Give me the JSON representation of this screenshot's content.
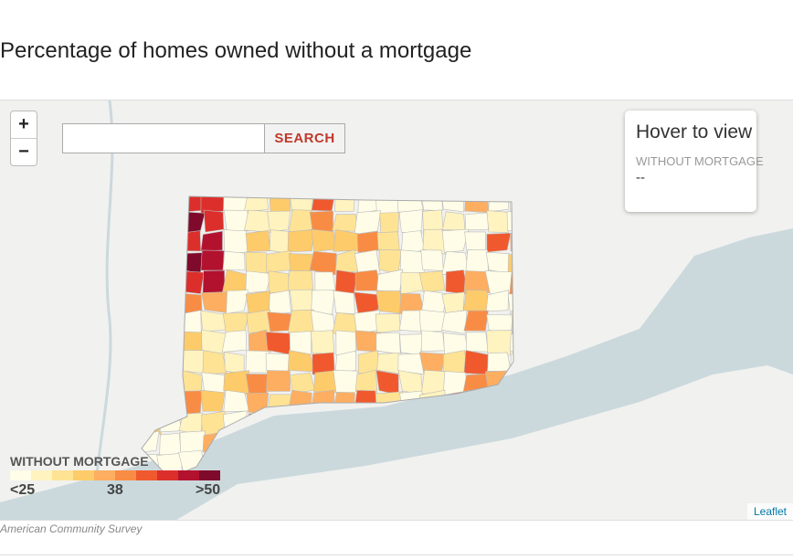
{
  "header": {
    "title": "Percentage of homes owned without a mortgage"
  },
  "controls": {
    "zoom_in": "+",
    "zoom_out": "−",
    "search_button": "SEARCH"
  },
  "info_box": {
    "title": "Hover to view",
    "label": "WITHOUT MORTGAGE",
    "value": "--"
  },
  "legend": {
    "title": "WITHOUT MORTGAGE",
    "labels": [
      "<25",
      "38",
      ">50"
    ],
    "colors": [
      "#fffde8",
      "#fff3bf",
      "#ffe394",
      "#fecb6a",
      "#fdae61",
      "#f98c44",
      "#f0592e",
      "#dc2f2b",
      "#b3122f",
      "#7f0a2b"
    ]
  },
  "attribution": "Leaflet",
  "source": "American Community Survey"
}
